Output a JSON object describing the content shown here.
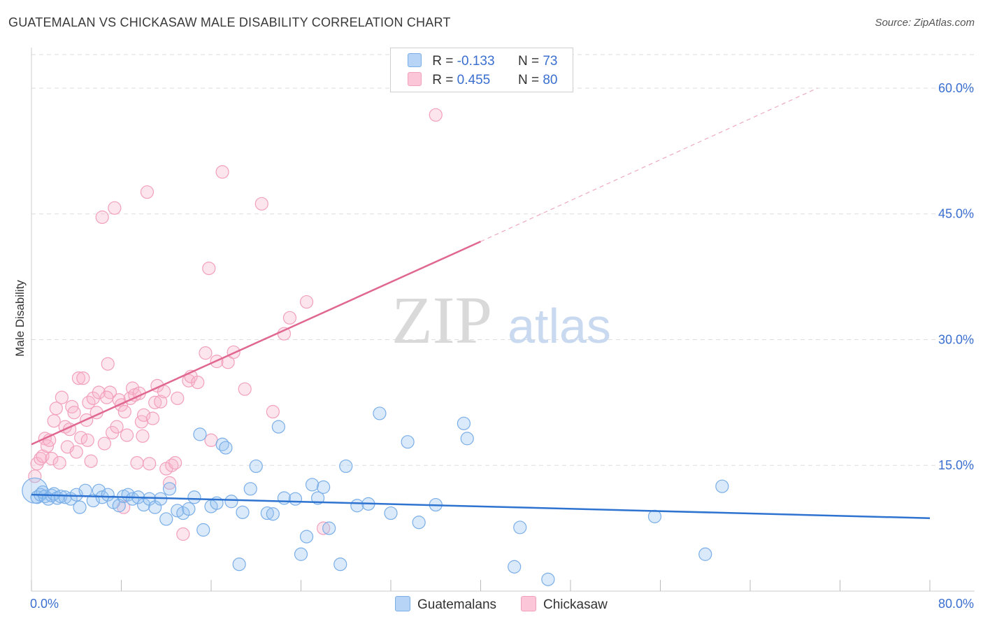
{
  "title": "GUATEMALAN VS CHICKASAW MALE DISABILITY CORRELATION CHART",
  "source": "Source: ZipAtlas.com",
  "watermark": {
    "zip": "ZIP",
    "atlas": "atlas"
  },
  "legend": {
    "row1": {
      "r_label": "R =",
      "r_value": "-0.133",
      "n_label": "N =",
      "n_value": "73"
    },
    "row2": {
      "r_label": "R =",
      "r_value": "0.455",
      "n_label": "N =",
      "n_value": "80"
    }
  },
  "colors": {
    "blue": "#7aaee8",
    "blue_line": "#2f73d0",
    "pink": "#f2a0bc",
    "pink_line": "#e06890",
    "tick_text": "#3a6fd0"
  },
  "chart_data": {
    "type": "scatter",
    "title": "GUATEMALAN VS CHICKASAW MALE DISABILITY CORRELATION CHART",
    "xlabel": "",
    "ylabel": "Male Disability",
    "xlim": [
      0,
      80
    ],
    "ylim": [
      0,
      64
    ],
    "x_tick_labels": [
      "0.0%",
      "80.0%"
    ],
    "y_ticks": [
      15,
      30,
      45,
      60
    ],
    "y_tick_labels": [
      "15.0%",
      "30.0%",
      "45.0%",
      "60.0%"
    ],
    "series": [
      {
        "name": "Guatemalans",
        "color": "#7aaee8",
        "trend": {
          "x0": 0,
          "y0": 11.5,
          "x1": 80,
          "y1": 8.7,
          "style": "solid"
        },
        "points": [
          [
            0.3,
            12.0
          ],
          [
            0.5,
            11.2
          ],
          [
            0.8,
            11.5
          ],
          [
            1.0,
            11.8
          ],
          [
            1.2,
            11.3
          ],
          [
            1.5,
            11.0
          ],
          [
            1.8,
            11.4
          ],
          [
            2.0,
            11.6
          ],
          [
            2.3,
            11.1
          ],
          [
            2.6,
            11.3
          ],
          [
            3.0,
            11.2
          ],
          [
            3.5,
            11.0
          ],
          [
            4.0,
            11.5
          ],
          [
            4.3,
            10.0
          ],
          [
            4.8,
            12.0
          ],
          [
            5.5,
            10.8
          ],
          [
            6.0,
            12.0
          ],
          [
            6.3,
            11.2
          ],
          [
            6.8,
            11.5
          ],
          [
            7.3,
            10.6
          ],
          [
            7.8,
            10.2
          ],
          [
            8.2,
            11.3
          ],
          [
            8.6,
            11.5
          ],
          [
            9.0,
            11.0
          ],
          [
            9.5,
            11.2
          ],
          [
            10.0,
            10.3
          ],
          [
            10.5,
            11.0
          ],
          [
            11.0,
            10.0
          ],
          [
            11.5,
            11.0
          ],
          [
            12.0,
            8.6
          ],
          [
            12.3,
            12.2
          ],
          [
            13.0,
            9.6
          ],
          [
            13.5,
            9.3
          ],
          [
            14.0,
            9.8
          ],
          [
            14.5,
            11.2
          ],
          [
            15.0,
            18.7
          ],
          [
            15.3,
            7.3
          ],
          [
            16.0,
            10.1
          ],
          [
            16.5,
            10.5
          ],
          [
            17.0,
            17.5
          ],
          [
            17.3,
            17.1
          ],
          [
            17.8,
            10.7
          ],
          [
            18.5,
            3.2
          ],
          [
            18.8,
            9.4
          ],
          [
            19.5,
            12.2
          ],
          [
            20.0,
            14.9
          ],
          [
            21.0,
            9.3
          ],
          [
            21.5,
            9.2
          ],
          [
            22.0,
            19.6
          ],
          [
            22.5,
            11.1
          ],
          [
            23.5,
            11.0
          ],
          [
            24.0,
            4.4
          ],
          [
            24.5,
            6.5
          ],
          [
            25.0,
            12.7
          ],
          [
            25.5,
            11.1
          ],
          [
            26.0,
            12.4
          ],
          [
            26.5,
            7.5
          ],
          [
            27.5,
            3.2
          ],
          [
            28.0,
            14.9
          ],
          [
            29.0,
            10.2
          ],
          [
            30.0,
            10.4
          ],
          [
            31.0,
            21.2
          ],
          [
            32.0,
            9.3
          ],
          [
            33.5,
            17.8
          ],
          [
            34.5,
            8.2
          ],
          [
            36.0,
            10.3
          ],
          [
            38.5,
            20.0
          ],
          [
            38.8,
            18.2
          ],
          [
            43.5,
            7.6
          ],
          [
            43.0,
            2.9
          ],
          [
            46.0,
            1.4
          ],
          [
            55.5,
            8.9
          ],
          [
            60.0,
            4.4
          ],
          [
            61.5,
            12.5
          ]
        ]
      },
      {
        "name": "Chickasaw",
        "color": "#f2a0bc",
        "trend": {
          "x0": 0,
          "y0": 17.5,
          "x1": 40,
          "y1": 41.7,
          "style": "solid",
          "dashed_to": {
            "x": 70,
            "y": 60.0
          }
        },
        "points": [
          [
            0.3,
            13.7
          ],
          [
            0.5,
            15.2
          ],
          [
            0.8,
            15.8
          ],
          [
            1.0,
            16.1
          ],
          [
            1.2,
            18.2
          ],
          [
            1.4,
            17.3
          ],
          [
            1.6,
            18.0
          ],
          [
            1.8,
            15.8
          ],
          [
            2.0,
            20.3
          ],
          [
            2.2,
            21.8
          ],
          [
            2.5,
            15.3
          ],
          [
            2.7,
            23.1
          ],
          [
            3.0,
            19.6
          ],
          [
            3.2,
            17.2
          ],
          [
            3.4,
            19.3
          ],
          [
            3.6,
            22.0
          ],
          [
            3.8,
            21.3
          ],
          [
            4.0,
            16.6
          ],
          [
            4.2,
            25.4
          ],
          [
            4.4,
            18.3
          ],
          [
            4.6,
            25.4
          ],
          [
            4.9,
            20.4
          ],
          [
            5.1,
            22.5
          ],
          [
            5.3,
            15.5
          ],
          [
            5.5,
            23.0
          ],
          [
            5.8,
            21.3
          ],
          [
            6.0,
            23.7
          ],
          [
            6.3,
            44.6
          ],
          [
            6.5,
            17.6
          ],
          [
            6.8,
            27.1
          ],
          [
            7.0,
            23.7
          ],
          [
            7.2,
            18.9
          ],
          [
            7.4,
            45.7
          ],
          [
            7.6,
            19.6
          ],
          [
            7.8,
            22.8
          ],
          [
            8.0,
            22.2
          ],
          [
            8.3,
            21.4
          ],
          [
            8.5,
            18.6
          ],
          [
            8.8,
            23.0
          ],
          [
            9.0,
            24.2
          ],
          [
            9.2,
            23.4
          ],
          [
            9.4,
            15.3
          ],
          [
            9.6,
            23.6
          ],
          [
            9.8,
            20.2
          ],
          [
            10.0,
            21.0
          ],
          [
            10.3,
            47.6
          ],
          [
            10.5,
            15.2
          ],
          [
            10.8,
            20.6
          ],
          [
            11.0,
            22.5
          ],
          [
            11.2,
            24.5
          ],
          [
            11.5,
            22.6
          ],
          [
            11.8,
            23.8
          ],
          [
            12.0,
            14.6
          ],
          [
            12.3,
            12.9
          ],
          [
            12.5,
            15.0
          ],
          [
            12.8,
            15.3
          ],
          [
            13.0,
            23.0
          ],
          [
            13.5,
            6.8
          ],
          [
            14.0,
            25.1
          ],
          [
            14.2,
            25.6
          ],
          [
            14.8,
            24.9
          ],
          [
            15.5,
            28.4
          ],
          [
            15.8,
            38.5
          ],
          [
            16.0,
            18.0
          ],
          [
            16.5,
            27.4
          ],
          [
            17.0,
            50.0
          ],
          [
            17.5,
            27.3
          ],
          [
            18.0,
            28.5
          ],
          [
            19.0,
            24.1
          ],
          [
            20.5,
            46.2
          ],
          [
            21.5,
            21.4
          ],
          [
            22.5,
            30.7
          ],
          [
            23.0,
            32.6
          ],
          [
            24.5,
            34.5
          ],
          [
            26.0,
            7.5
          ],
          [
            36.0,
            56.8
          ],
          [
            8.2,
            10.0
          ],
          [
            5.0,
            18.0
          ],
          [
            9.9,
            18.5
          ],
          [
            6.7,
            23.1
          ]
        ]
      }
    ]
  },
  "bottom_legend": {
    "item1": "Guatemalans",
    "item2": "Chickasaw"
  }
}
